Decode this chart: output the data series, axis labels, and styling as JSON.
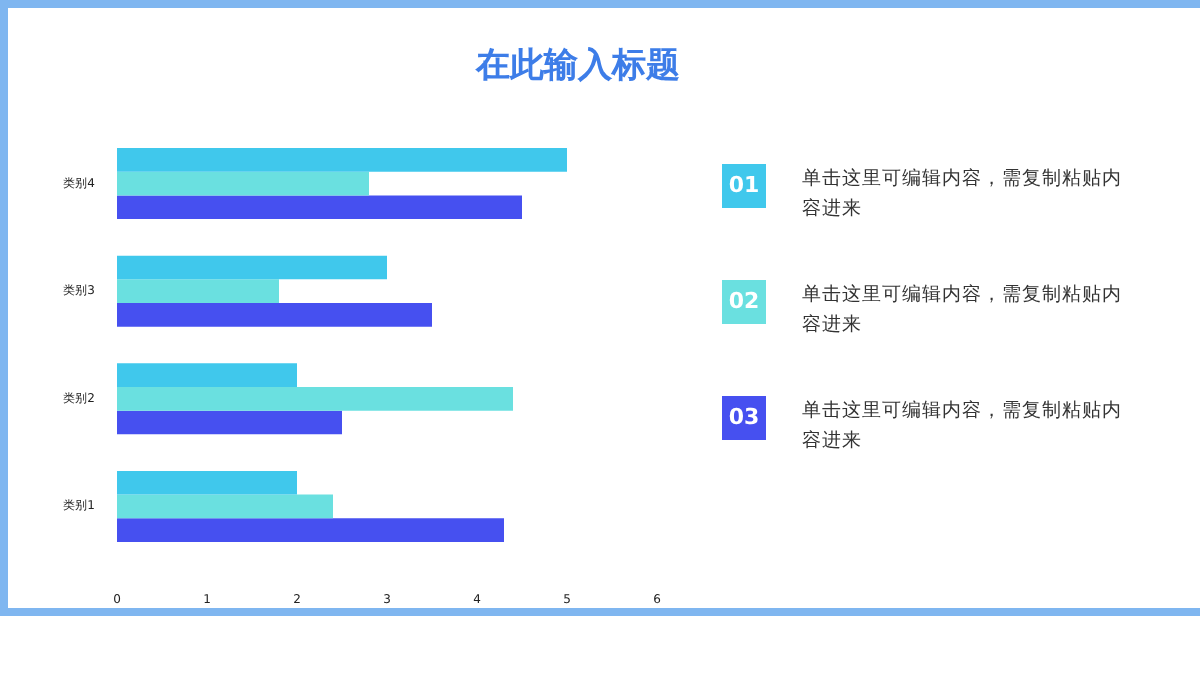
{
  "chart_data": {
    "type": "bar",
    "orientation": "horizontal",
    "title": "在此输入标题",
    "categories": [
      "类别4",
      "类别3",
      "类别2",
      "类别1"
    ],
    "series": [
      {
        "color": "#4650f0",
        "values": [
          4.5,
          3.5,
          2.5,
          4.3
        ]
      },
      {
        "color": "#6ae0e0",
        "values": [
          2.8,
          1.8,
          4.4,
          2.4
        ]
      },
      {
        "color": "#40c8ec",
        "values": [
          5,
          3,
          2,
          2
        ]
      }
    ],
    "xlim": [
      0,
      6
    ],
    "xticks": [
      0,
      1,
      2,
      3,
      4,
      5,
      6
    ],
    "grid": false,
    "annotations": [
      "01",
      "单击这里可编辑内容，需复制粘贴内容进来",
      "02",
      "单击这里可编辑内容，需复制粘贴内容进来",
      "03",
      "单击这里可编辑内容，需复制粘贴内容进来"
    ]
  }
}
